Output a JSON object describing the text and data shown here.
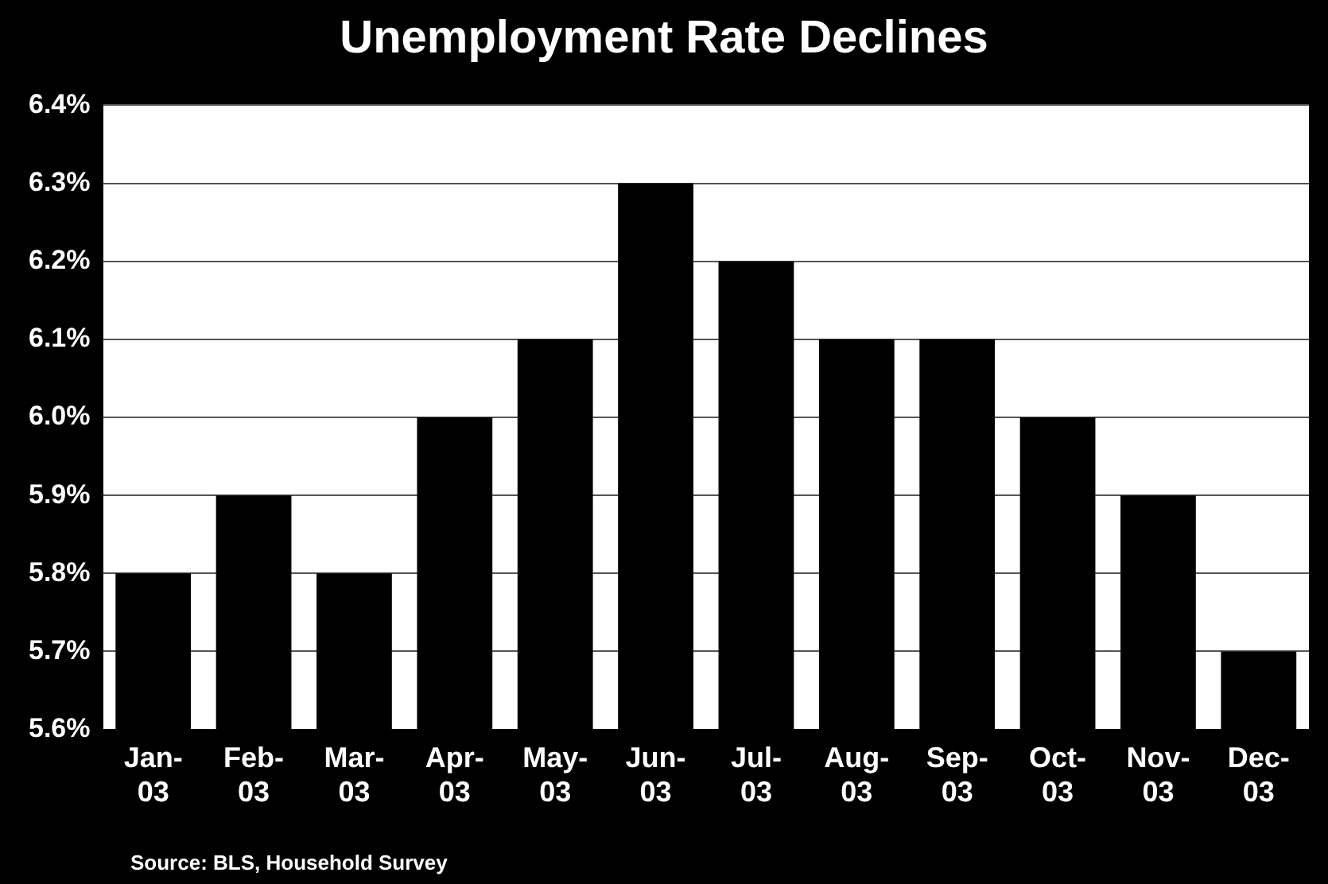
{
  "chart_data": {
    "type": "bar",
    "title": "Unemployment Rate Declines",
    "categories": [
      "Jan-03",
      "Feb-03",
      "Mar-03",
      "Apr-03",
      "May-03",
      "Jun-03",
      "Jul-03",
      "Aug-03",
      "Sep-03",
      "Oct-03",
      "Nov-03",
      "Dec-03"
    ],
    "values": [
      5.8,
      5.9,
      5.8,
      6.0,
      6.1,
      6.3,
      6.2,
      6.1,
      6.1,
      6.0,
      5.9,
      5.7
    ],
    "color": "#000000",
    "ylim": [
      5.6,
      6.4
    ],
    "yticks": [
      {
        "value": 5.6,
        "label": "5.6%"
      },
      {
        "value": 5.7,
        "label": "5.7%"
      },
      {
        "value": 5.8,
        "label": "5.8%"
      },
      {
        "value": 5.9,
        "label": "5.9%"
      },
      {
        "value": 6.0,
        "label": "6.0%"
      },
      {
        "value": 6.1,
        "label": "6.1%"
      },
      {
        "value": 6.2,
        "label": "6.2%"
      },
      {
        "value": 6.3,
        "label": "6.3%"
      },
      {
        "value": 6.4,
        "label": "6.4%"
      }
    ],
    "grid": "y",
    "annotations": [
      "Source: BLS, Household Survey"
    ]
  }
}
